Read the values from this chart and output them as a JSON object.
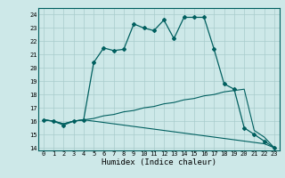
{
  "xlabel": "Humidex (Indice chaleur)",
  "xlim": [
    -0.5,
    23.5
  ],
  "ylim": [
    13.8,
    24.5
  ],
  "xticks": [
    0,
    1,
    2,
    3,
    4,
    5,
    6,
    7,
    8,
    9,
    10,
    11,
    12,
    13,
    14,
    15,
    16,
    17,
    18,
    19,
    20,
    21,
    22,
    23
  ],
  "yticks": [
    14,
    15,
    16,
    17,
    18,
    19,
    20,
    21,
    22,
    23,
    24
  ],
  "bg_color": "#cde8e8",
  "grid_color": "#a8cccc",
  "line_color": "#005f5f",
  "line1_x": [
    0,
    1,
    2,
    3,
    4,
    5,
    6,
    7,
    8,
    9,
    10,
    11,
    12,
    13,
    14,
    15,
    16,
    17,
    18,
    19,
    20,
    21,
    22,
    23
  ],
  "line1_y": [
    16.1,
    16.0,
    15.7,
    16.0,
    16.1,
    20.4,
    21.5,
    21.3,
    21.4,
    23.3,
    23.0,
    22.8,
    23.6,
    22.2,
    23.8,
    23.8,
    23.8,
    21.4,
    18.8,
    18.4,
    15.5,
    15.0,
    14.5,
    14.0
  ],
  "line2_x": [
    0,
    1,
    2,
    3,
    4,
    5,
    6,
    7,
    8,
    9,
    10,
    11,
    12,
    13,
    14,
    15,
    16,
    17,
    18,
    19,
    20,
    21,
    22,
    23
  ],
  "line2_y": [
    16.1,
    16.0,
    15.8,
    16.0,
    16.1,
    16.2,
    16.4,
    16.5,
    16.7,
    16.8,
    17.0,
    17.1,
    17.3,
    17.4,
    17.6,
    17.7,
    17.9,
    18.0,
    18.2,
    18.3,
    18.4,
    15.3,
    14.8,
    14.0
  ],
  "line3_x": [
    0,
    1,
    2,
    3,
    4,
    5,
    6,
    7,
    8,
    9,
    10,
    11,
    12,
    13,
    14,
    15,
    16,
    17,
    18,
    19,
    20,
    21,
    22,
    23
  ],
  "line3_y": [
    16.1,
    16.0,
    15.8,
    16.0,
    16.1,
    16.0,
    15.9,
    15.8,
    15.7,
    15.6,
    15.5,
    15.4,
    15.3,
    15.2,
    15.1,
    15.0,
    14.9,
    14.8,
    14.7,
    14.6,
    14.5,
    14.4,
    14.3,
    14.0
  ],
  "xlabel_fontsize": 6.5,
  "tick_fontsize": 5.0
}
